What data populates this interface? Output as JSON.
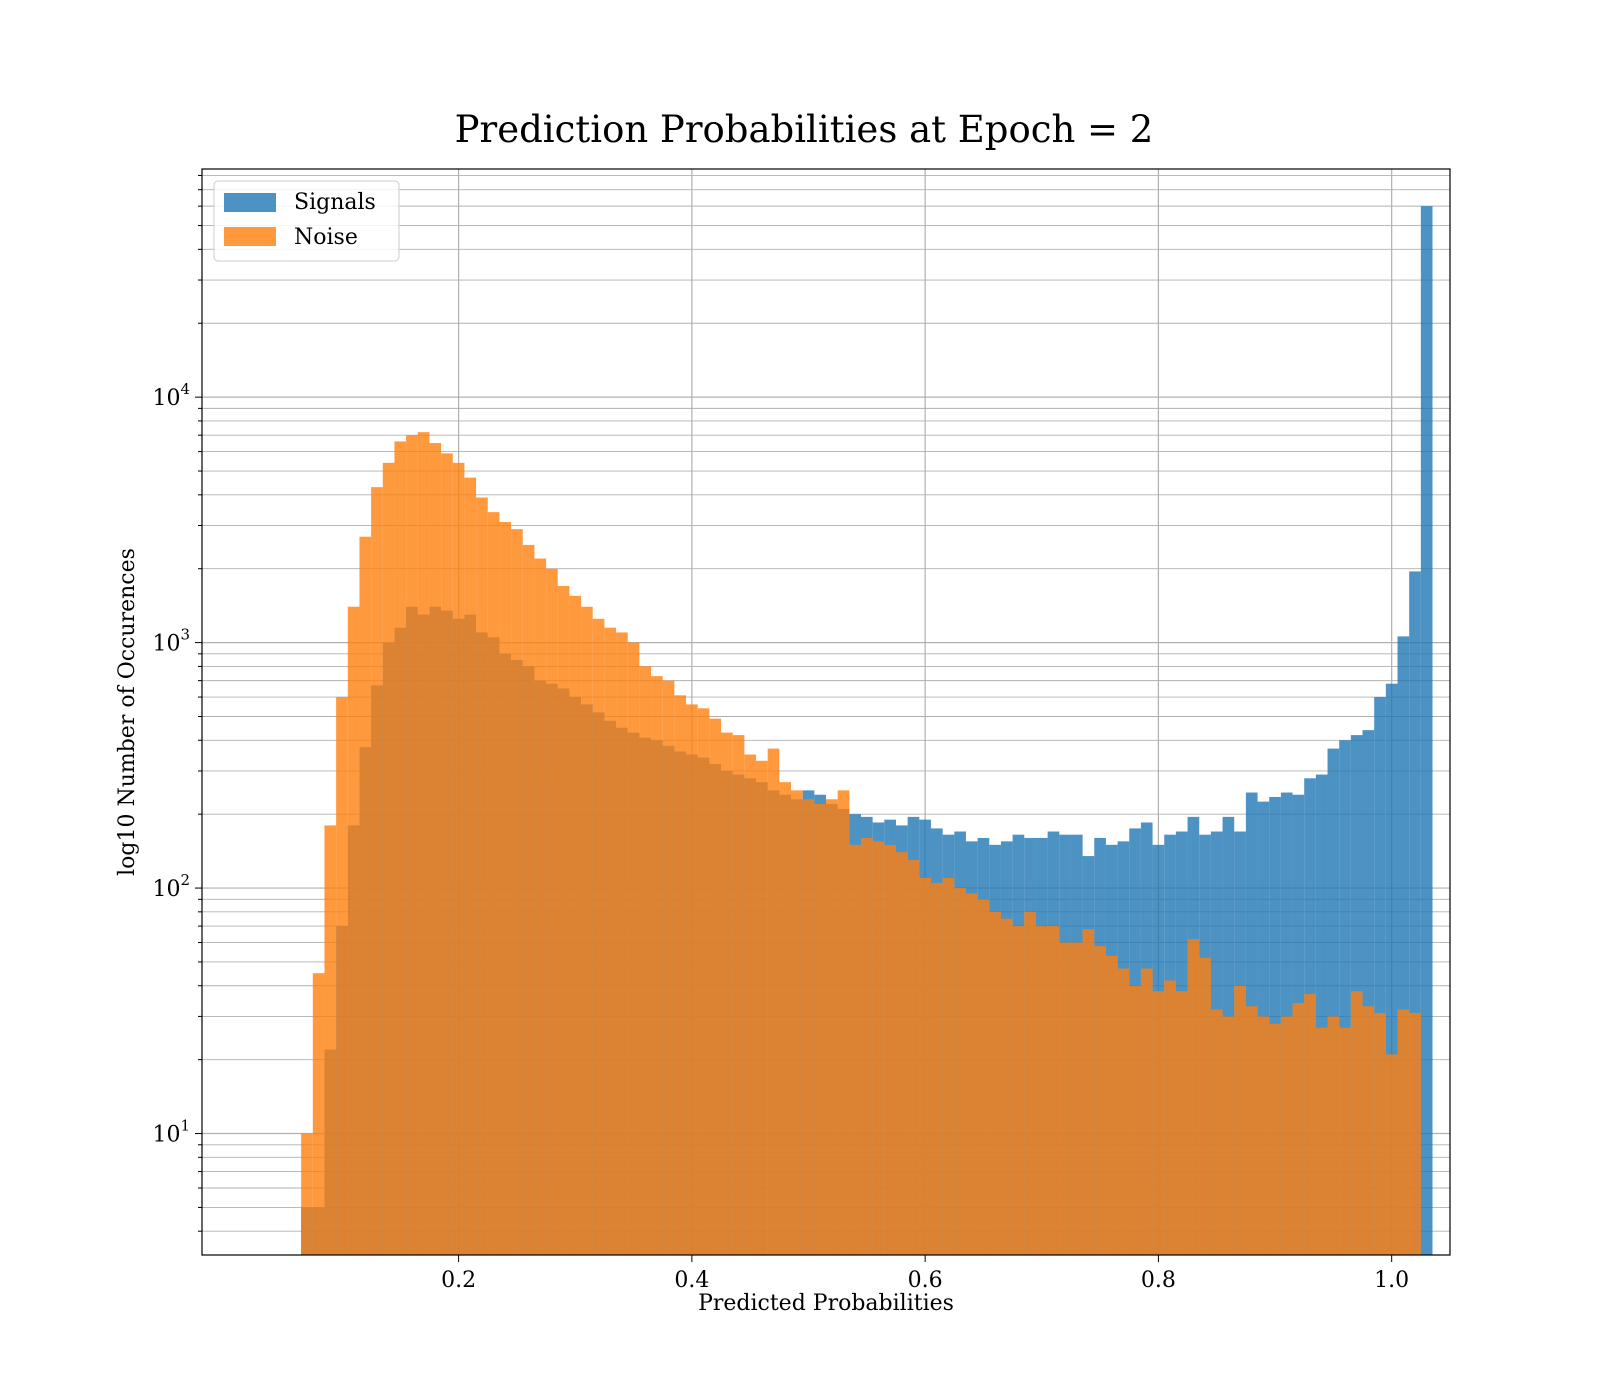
{
  "chart_data": {
    "type": "bar",
    "title": "Prediction Probabilities at Epoch = 2",
    "xlabel": "Predicted Probabilities",
    "ylabel": "log10 Number of Occurences",
    "xlim": [
      -0.02,
      1.05
    ],
    "ylim": [
      3.2,
      85000
    ],
    "yscale": "log",
    "grid": true,
    "legend_position": "top-left",
    "bin_start": 0.065,
    "bin_width": 0.01,
    "x_ticks": [
      0.2,
      0.4,
      0.6,
      0.8,
      1.0
    ],
    "x_tick_labels": [
      "0.2",
      "0.4",
      "0.6",
      "0.8",
      "1.0"
    ],
    "y_major_ticks": [
      {
        "value": 10,
        "base": "10",
        "exp": "1"
      },
      {
        "value": 100,
        "base": "10",
        "exp": "2"
      },
      {
        "value": 1000,
        "base": "10",
        "exp": "3"
      },
      {
        "value": 10000,
        "base": "10",
        "exp": "4"
      }
    ],
    "series": [
      {
        "name": "Signals",
        "color": "#1f77b4",
        "values": [
          5,
          5,
          22,
          70,
          180,
          375,
          670,
          1000,
          1150,
          1400,
          1300,
          1400,
          1350,
          1250,
          1300,
          1100,
          1050,
          900,
          850,
          800,
          700,
          680,
          650,
          600,
          560,
          520,
          480,
          450,
          430,
          410,
          400,
          380,
          360,
          350,
          340,
          320,
          300,
          290,
          280,
          270,
          250,
          240,
          230,
          250,
          240,
          220,
          210,
          200,
          195,
          185,
          190,
          180,
          195,
          190,
          175,
          165,
          170,
          155,
          160,
          150,
          155,
          165,
          160,
          160,
          170,
          165,
          165,
          135,
          160,
          150,
          155,
          175,
          185,
          150,
          165,
          170,
          195,
          165,
          170,
          195,
          170,
          245,
          225,
          235,
          245,
          240,
          280,
          290,
          370,
          400,
          420,
          440,
          600,
          680,
          1060,
          1950,
          60000
        ]
      },
      {
        "name": "Noise",
        "color": "#ff7f0e",
        "values": [
          10,
          45,
          180,
          600,
          1400,
          2700,
          4300,
          5400,
          6600,
          7000,
          7200,
          6500,
          5900,
          5400,
          4700,
          3900,
          3400,
          3100,
          2900,
          2500,
          2200,
          2000,
          1700,
          1550,
          1400,
          1250,
          1150,
          1100,
          1000,
          800,
          730,
          700,
          610,
          560,
          540,
          490,
          430,
          420,
          350,
          330,
          370,
          270,
          250,
          230,
          220,
          230,
          250,
          150,
          160,
          155,
          150,
          140,
          130,
          110,
          105,
          110,
          100,
          95,
          90,
          80,
          75,
          70,
          80,
          70,
          70,
          60,
          60,
          68,
          58,
          53,
          47,
          40,
          47,
          38,
          42,
          38,
          62,
          52,
          32,
          30,
          40,
          33,
          30,
          28,
          30,
          34,
          37,
          27,
          30,
          27,
          38,
          33,
          31,
          21,
          32,
          31
        ]
      }
    ]
  }
}
